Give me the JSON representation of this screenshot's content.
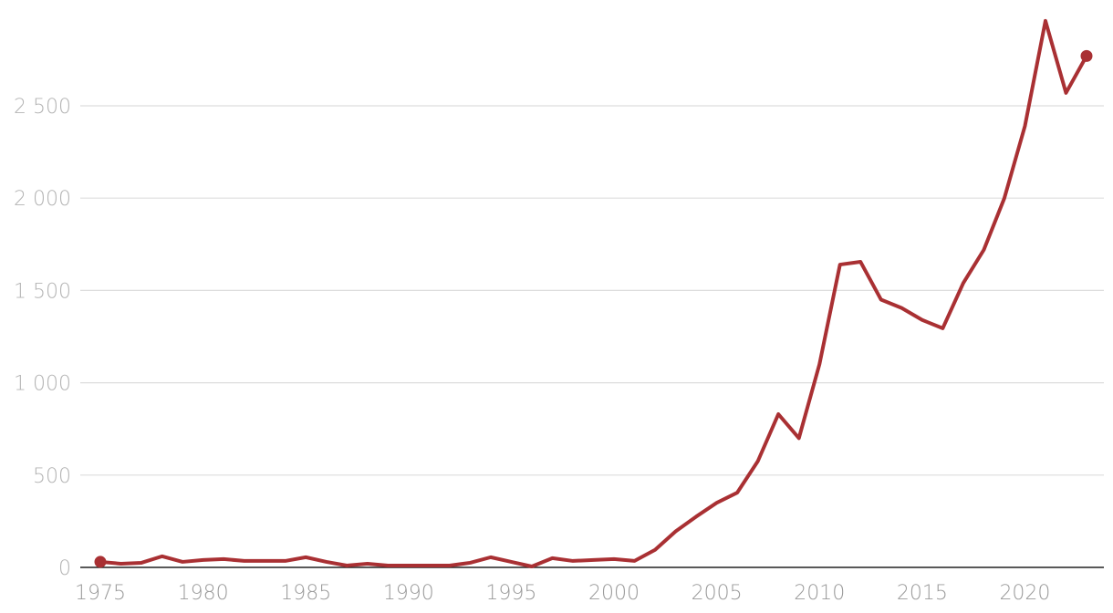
{
  "chart_data": {
    "type": "line",
    "title": "",
    "xlabel": "",
    "ylabel": "",
    "xlim": [
      1975,
      2023
    ],
    "ylim": [
      0,
      2950
    ],
    "grid": true,
    "legend": "none",
    "y_ticks": [
      0,
      500,
      1000,
      1500,
      2000,
      2500
    ],
    "y_tick_labels": [
      "0",
      "500",
      "1 000",
      "1 500",
      "2 000",
      "2 500"
    ],
    "x_ticks": [
      1975,
      1980,
      1985,
      1990,
      1995,
      2000,
      2005,
      2010,
      2015,
      2020
    ],
    "x_tick_labels": [
      "1975",
      "1980",
      "1985",
      "1990",
      "1995",
      "2000",
      "2005",
      "2010",
      "2015",
      "2020"
    ],
    "line_color": "#a93033",
    "series": [
      {
        "x": [
          1975,
          1976,
          1977,
          1978,
          1979,
          1980,
          1981,
          1982,
          1983,
          1984,
          1985,
          1986,
          1987,
          1988,
          1989,
          1990,
          1991,
          1992,
          1993,
          1994,
          1995,
          1996,
          1997,
          1998,
          1999,
          2000,
          2001,
          2002,
          2003,
          2004,
          2005,
          2006,
          2007,
          2008,
          2009,
          2010,
          2011,
          2012,
          2013,
          2014,
          2015,
          2016,
          2017,
          2018,
          2019,
          2020,
          2021,
          2022,
          2023
        ],
        "values": [
          30,
          20,
          25,
          60,
          30,
          40,
          45,
          35,
          35,
          35,
          55,
          30,
          10,
          20,
          10,
          10,
          10,
          10,
          25,
          55,
          30,
          5,
          50,
          35,
          40,
          45,
          35,
          95,
          195,
          275,
          350,
          405,
          575,
          830,
          700,
          1100,
          1640,
          1655,
          1450,
          1405,
          1340,
          1295,
          1540,
          1720,
          2000,
          2390,
          2960,
          2570,
          2770
        ]
      }
    ]
  }
}
